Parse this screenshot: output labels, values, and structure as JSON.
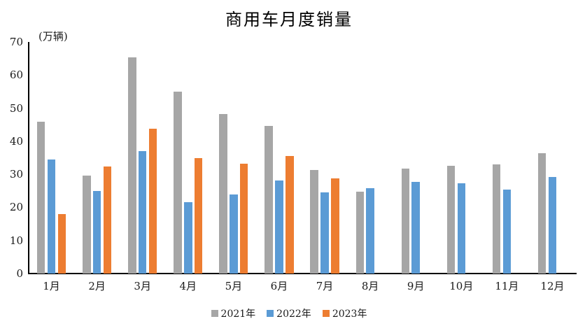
{
  "chart_data": {
    "type": "bar",
    "title": "商用车月度销量",
    "ylabel": "(万辆)",
    "xlabel": "",
    "categories": [
      "1月",
      "2月",
      "3月",
      "4月",
      "5月",
      "6月",
      "7月",
      "8月",
      "9月",
      "10月",
      "11月",
      "12月"
    ],
    "series": [
      {
        "name": "2021年",
        "color": "#a6a6a6",
        "values": [
          45.9,
          29.7,
          65.3,
          55.0,
          48.2,
          44.6,
          31.2,
          24.7,
          31.7,
          32.6,
          33.0,
          36.4
        ]
      },
      {
        "name": "2022年",
        "color": "#5b9bd5",
        "values": [
          34.5,
          24.9,
          37.0,
          21.6,
          23.9,
          28.1,
          24.5,
          25.8,
          27.8,
          27.2,
          25.4,
          29.2
        ]
      },
      {
        "name": "2023年",
        "color": "#ed7d31",
        "values": [
          18.0,
          32.3,
          43.7,
          34.9,
          33.1,
          35.5,
          28.8,
          null,
          null,
          null,
          null,
          null
        ]
      }
    ],
    "ylim": [
      0,
      70
    ],
    "yticks": [
      0,
      10,
      20,
      30,
      40,
      50,
      60,
      70
    ],
    "grid": false,
    "legend_position": "bottom",
    "axis_color": "#000000",
    "text_color": "#1a1a1a"
  }
}
